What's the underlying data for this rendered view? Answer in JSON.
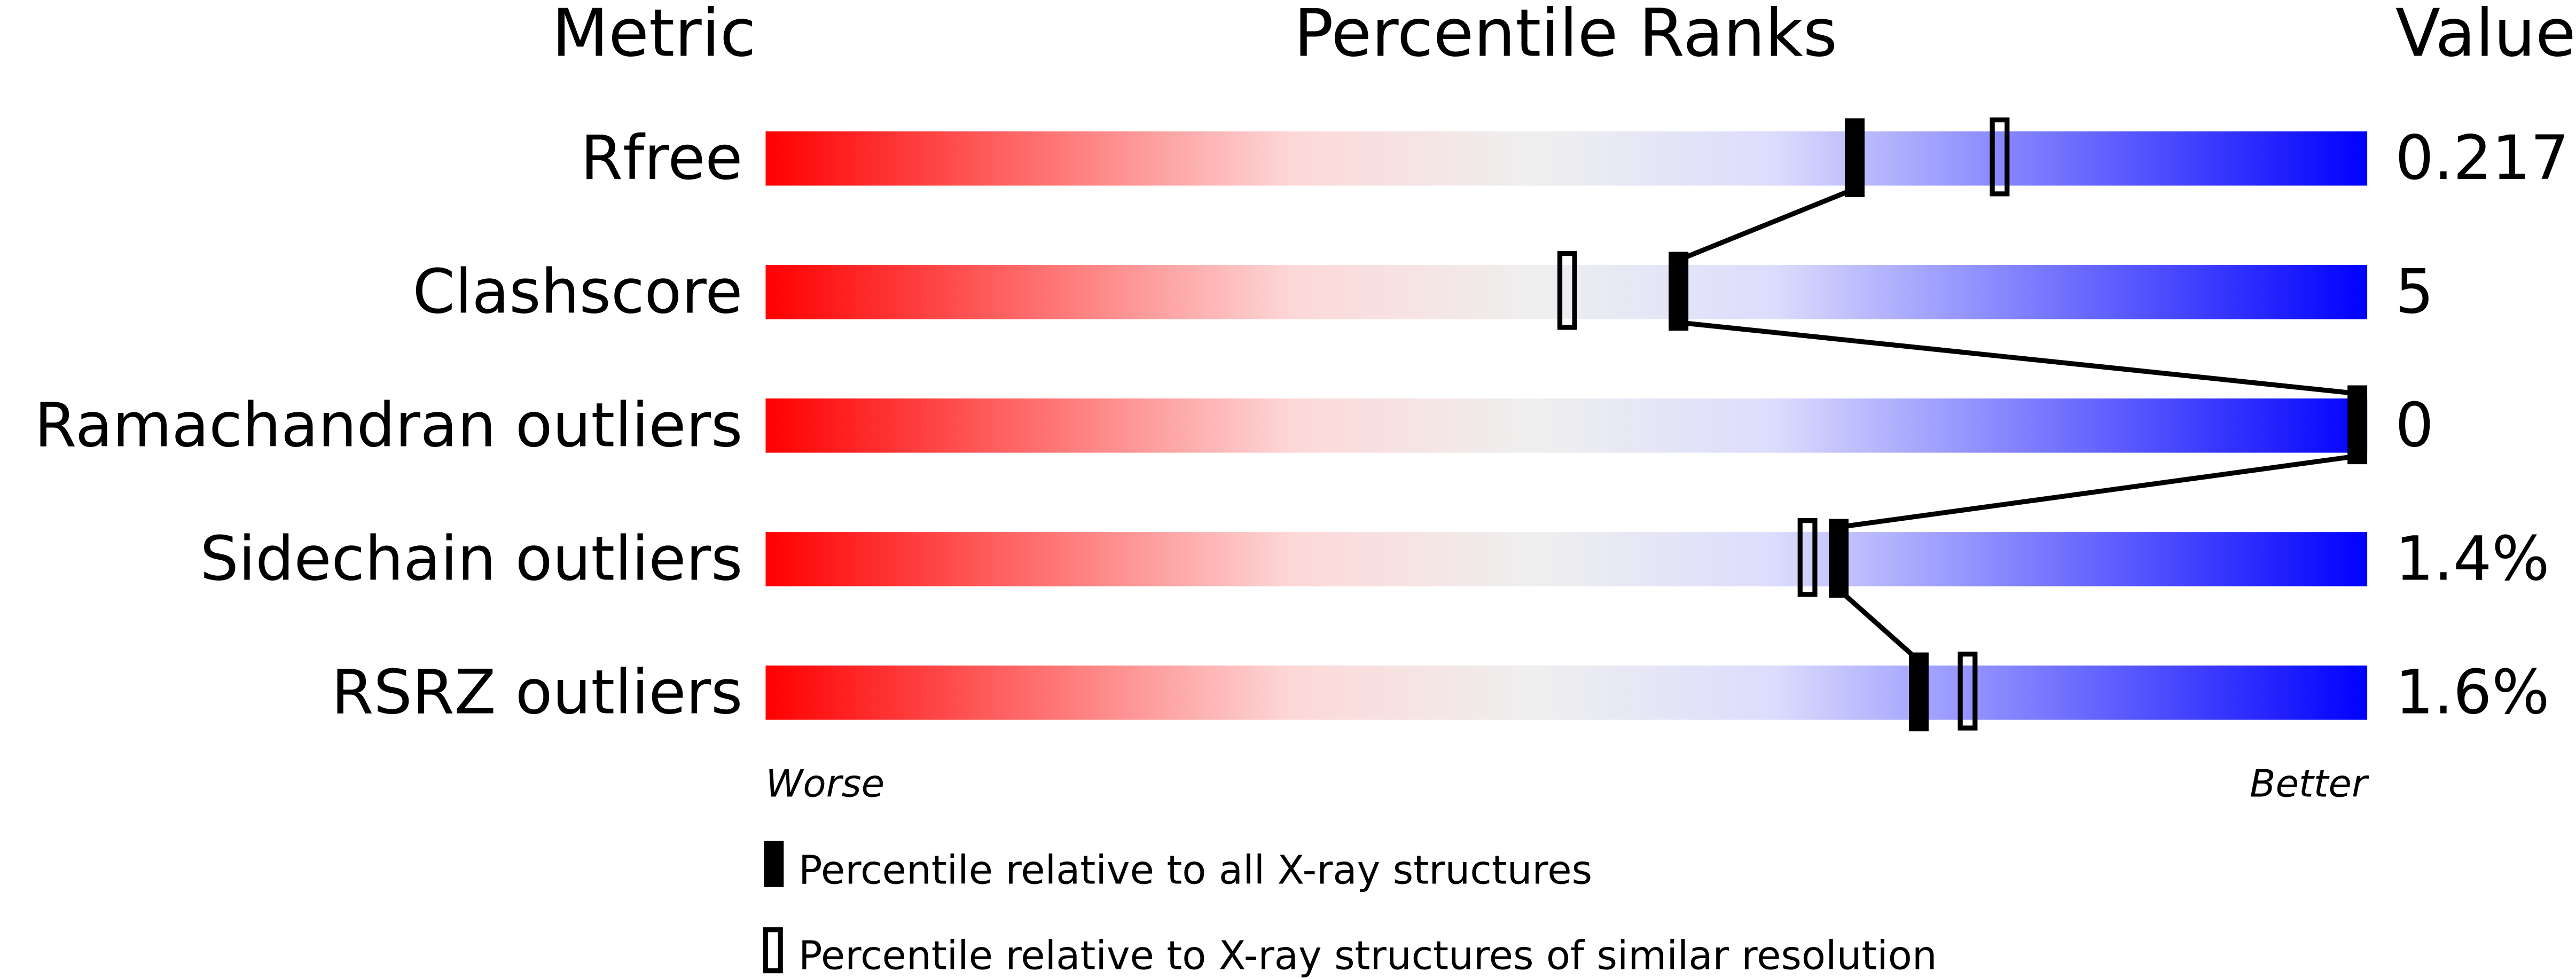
{
  "chart_data": {
    "type": "percentile-bar",
    "headers": {
      "metric": "Metric",
      "ranks": "Percentile Ranks",
      "value": "Value"
    },
    "xlim": [
      0,
      100
    ],
    "axis_labels": {
      "left": "Worse",
      "right": "Better"
    },
    "gradient_colors": [
      "#ff0000",
      "#fdd8d8",
      "#efefef",
      "#dcdcfd",
      "#0000ff"
    ],
    "metrics": [
      {
        "name": "Rfree",
        "value": "0.217",
        "percentile_all": 68,
        "percentile_similar": 77
      },
      {
        "name": "Clashscore",
        "value": "5",
        "percentile_all": 57,
        "percentile_similar": 50
      },
      {
        "name": "Ramachandran outliers",
        "value": "0",
        "percentile_all": 100,
        "percentile_similar": 100
      },
      {
        "name": "Sidechain outliers",
        "value": "1.4%",
        "percentile_all": 67,
        "percentile_similar": 65
      },
      {
        "name": "RSRZ outliers",
        "value": "1.6%",
        "percentile_all": 72,
        "percentile_similar": 75
      }
    ],
    "legend": [
      {
        "marker": "filled",
        "label": "Percentile relative to all X-ray structures"
      },
      {
        "marker": "hollow",
        "label": "Percentile relative to X-ray structures of similar resolution"
      }
    ]
  }
}
